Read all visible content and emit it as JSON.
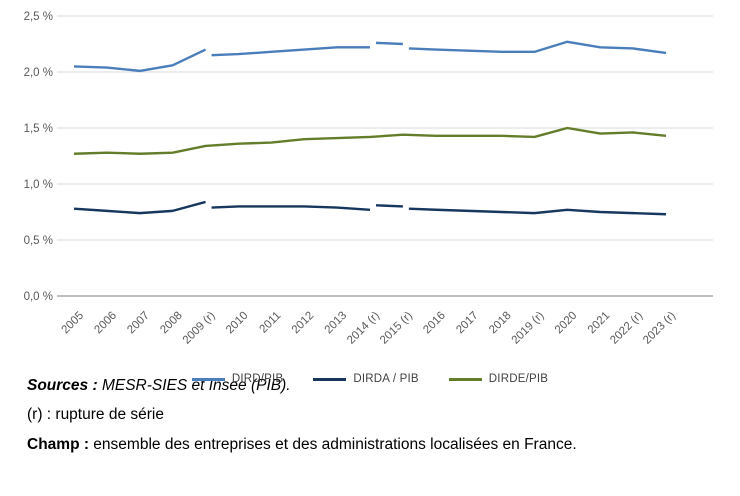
{
  "chart_data": {
    "type": "line",
    "title": "",
    "xlabel": "",
    "ylabel": "",
    "unit": "% du PIB",
    "x_start": 2005,
    "categories": [
      "2005",
      "2006",
      "2007",
      "2008",
      "2009 (r)",
      "2010",
      "2011",
      "2012",
      "2013",
      "2014 (r)",
      "2015 (r)",
      "2016",
      "2017",
      "2018",
      "2019 (r)",
      "2020",
      "2021",
      "2022 (r)",
      "2023 (r)"
    ],
    "y_axis": {
      "min": 0,
      "max": 2.5,
      "step": 0.5,
      "tick_labels": [
        "0,0 %",
        "0,5 %",
        "1,0 %",
        "1,5 %",
        "2,0 %",
        "2,5 %"
      ]
    },
    "grid": true,
    "legend_position": "bottom",
    "series": [
      {
        "name": "DIRD/PIB",
        "color": "#4a7ebb",
        "segments": [
          {
            "years": [
              2005,
              2006,
              2007,
              2008,
              2009
            ],
            "values": [
              2.05,
              2.04,
              2.01,
              2.06,
              2.2
            ]
          },
          {
            "years": [
              2009,
              2010,
              2011,
              2012,
              2013,
              2014
            ],
            "values": [
              2.15,
              2.16,
              2.18,
              2.2,
              2.22,
              2.22
            ]
          },
          {
            "years": [
              2014,
              2015
            ],
            "values": [
              2.26,
              2.25
            ]
          },
          {
            "years": [
              2015,
              2016,
              2017,
              2018,
              2019,
              2020,
              2021,
              2022,
              2023
            ],
            "values": [
              2.21,
              2.2,
              2.19,
              2.18,
              2.18,
              2.27,
              2.22,
              2.21,
              2.17
            ]
          }
        ]
      },
      {
        "name": "DIRDA / PIB",
        "color": "#17375e",
        "segments": [
          {
            "years": [
              2005,
              2006,
              2007,
              2008,
              2009
            ],
            "values": [
              0.78,
              0.76,
              0.74,
              0.76,
              0.84
            ]
          },
          {
            "years": [
              2009,
              2010,
              2011,
              2012,
              2013,
              2014
            ],
            "values": [
              0.79,
              0.8,
              0.8,
              0.8,
              0.79,
              0.77
            ]
          },
          {
            "years": [
              2014,
              2015
            ],
            "values": [
              0.81,
              0.8
            ]
          },
          {
            "years": [
              2015,
              2016,
              2017,
              2018,
              2019,
              2020,
              2021,
              2022,
              2023
            ],
            "values": [
              0.78,
              0.77,
              0.76,
              0.75,
              0.74,
              0.77,
              0.75,
              0.74,
              0.73
            ]
          }
        ]
      },
      {
        "name": "DIRDE/PIB",
        "color": "#647d2b",
        "segments": [
          {
            "years": [
              2005,
              2006,
              2007,
              2008,
              2009,
              2010,
              2011,
              2012,
              2013,
              2014,
              2015,
              2016,
              2017,
              2018,
              2019,
              2020,
              2021,
              2022,
              2023
            ],
            "values": [
              1.27,
              1.28,
              1.27,
              1.28,
              1.34,
              1.36,
              1.37,
              1.4,
              1.41,
              1.42,
              1.44,
              1.43,
              1.43,
              1.43,
              1.42,
              1.5,
              1.45,
              1.46,
              1.43
            ]
          }
        ]
      }
    ]
  },
  "footer": {
    "sources_label": "Sources :",
    "sources_text": " MESR-SIES et Insee (PIB).",
    "rupture_note": "(r) : rupture de série",
    "champ_label": "Champ :",
    "champ_text": " ensemble des entreprises et des administrations localisées en France."
  }
}
